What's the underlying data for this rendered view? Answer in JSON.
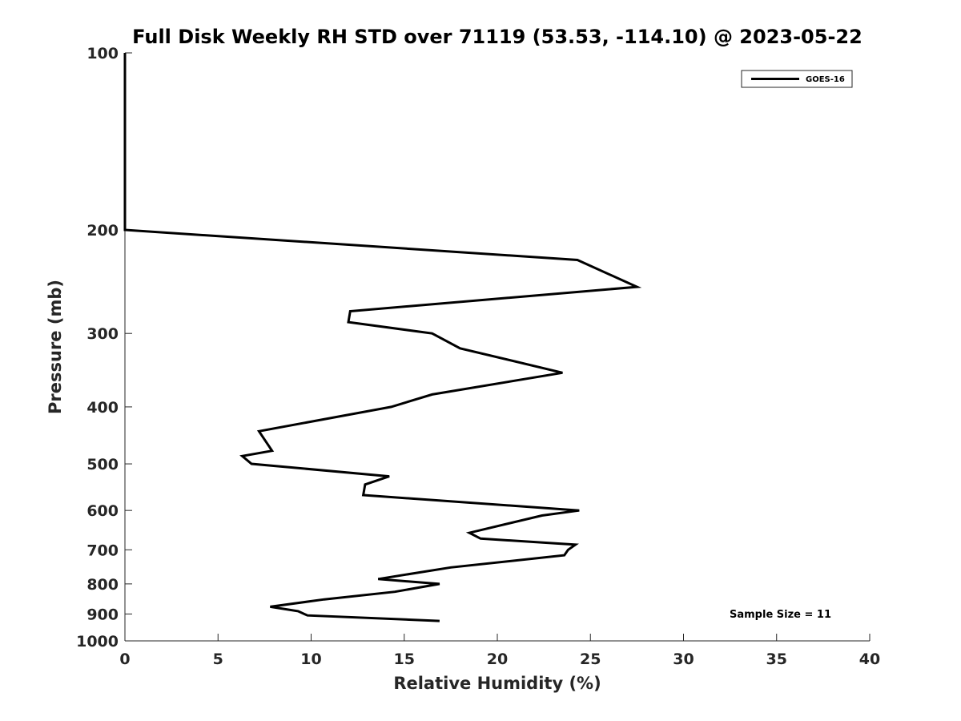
{
  "chart_data": {
    "type": "line",
    "title": "Full Disk Weekly RH STD over 71119 (53.53, -114.10) @ 2023-05-22",
    "xlabel": "Relative Humidity (%)",
    "ylabel": "Pressure (mb)",
    "xlim": [
      0,
      40
    ],
    "ylim": [
      100,
      1000
    ],
    "y_scale": "log",
    "y_reversed": true,
    "x_ticks": [
      0,
      5,
      10,
      15,
      20,
      25,
      30,
      35,
      40
    ],
    "y_ticks": [
      100,
      200,
      300,
      400,
      500,
      600,
      700,
      800,
      900,
      1000
    ],
    "grid": false,
    "legend_position": "top-right",
    "annotation": "Sample Size = 11",
    "series": [
      {
        "name": "GOES-16",
        "color": "#000000",
        "points": [
          {
            "x": 0,
            "y": 100
          },
          {
            "x": 0,
            "y": 150
          },
          {
            "x": 0,
            "y": 200
          },
          {
            "x": 24.3,
            "y": 225
          },
          {
            "x": 27.5,
            "y": 250
          },
          {
            "x": 12.1,
            "y": 275
          },
          {
            "x": 12.0,
            "y": 287
          },
          {
            "x": 16.5,
            "y": 300
          },
          {
            "x": 18.0,
            "y": 318
          },
          {
            "x": 23.5,
            "y": 350
          },
          {
            "x": 16.5,
            "y": 381
          },
          {
            "x": 14.3,
            "y": 400
          },
          {
            "x": 7.2,
            "y": 440
          },
          {
            "x": 7.9,
            "y": 475
          },
          {
            "x": 6.3,
            "y": 485
          },
          {
            "x": 6.8,
            "y": 500
          },
          {
            "x": 14.2,
            "y": 525
          },
          {
            "x": 12.9,
            "y": 542
          },
          {
            "x": 12.8,
            "y": 565
          },
          {
            "x": 24.4,
            "y": 600
          },
          {
            "x": 22.4,
            "y": 612
          },
          {
            "x": 18.5,
            "y": 655
          },
          {
            "x": 19.1,
            "y": 670
          },
          {
            "x": 24.2,
            "y": 686
          },
          {
            "x": 23.8,
            "y": 700
          },
          {
            "x": 23.6,
            "y": 715
          },
          {
            "x": 17.5,
            "y": 750
          },
          {
            "x": 13.6,
            "y": 785
          },
          {
            "x": 16.9,
            "y": 800
          },
          {
            "x": 14.5,
            "y": 825
          },
          {
            "x": 10.7,
            "y": 850
          },
          {
            "x": 7.8,
            "y": 875
          },
          {
            "x": 9.3,
            "y": 890
          },
          {
            "x": 9.8,
            "y": 905
          },
          {
            "x": 16.9,
            "y": 925
          }
        ]
      }
    ]
  }
}
